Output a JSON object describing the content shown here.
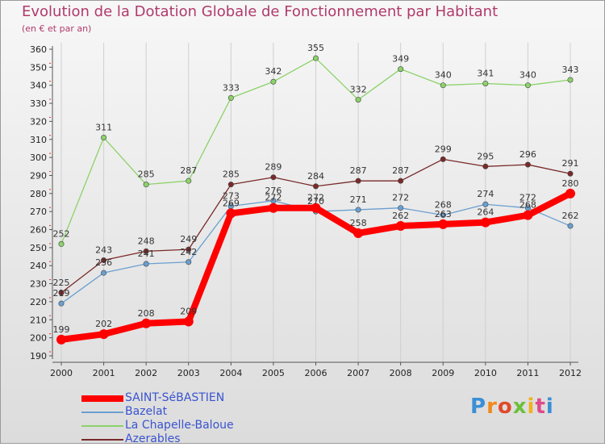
{
  "title": "Evolution de la Dotation Globale de Fonctionnement par Habitant",
  "subtitle": "(en € et par an)",
  "logo_text": "Proxiti",
  "chart_data": {
    "type": "line",
    "title": "Evolution de la Dotation Globale de Fonctionnement par Habitant",
    "subtitle": "(en € et par an)",
    "x": [
      2000,
      2001,
      2002,
      2003,
      2004,
      2005,
      2006,
      2007,
      2008,
      2009,
      2010,
      2011,
      2012
    ],
    "x_tick_labels": [
      "2000",
      "2001",
      "2002",
      "2003",
      "2004",
      "2005",
      "2006",
      "2007",
      "2008",
      "2009",
      "2010",
      "2011",
      "2012"
    ],
    "ylim": [
      190,
      360
    ],
    "y_ticks": [
      190,
      200,
      210,
      220,
      230,
      240,
      250,
      260,
      270,
      280,
      290,
      300,
      310,
      320,
      330,
      340,
      350,
      360
    ],
    "y_tick_labels": [
      "190",
      "200",
      "210",
      "220",
      "230",
      "240",
      "250",
      "260",
      "270",
      "280",
      "290",
      "300",
      "310",
      "320",
      "330",
      "340",
      "350",
      "360"
    ],
    "grid": "vertical",
    "legend_position": "bottom-left",
    "series": [
      {
        "name": "SAINT-SéBASTIEN",
        "color": "#ff0000",
        "style": "thick",
        "values": [
          199,
          202,
          208,
          209,
          269,
          272,
          272,
          258,
          262,
          263,
          264,
          268,
          280
        ],
        "labels": [
          "199",
          "202",
          "208",
          "209",
          "269",
          "272",
          "272",
          "258",
          "262",
          "263",
          "264",
          "268",
          "280"
        ]
      },
      {
        "name": "Bazelat",
        "color": "#6a9fd0",
        "style": "thin",
        "values": [
          219,
          236,
          241,
          242,
          273,
          276,
          270,
          271,
          272,
          268,
          274,
          272,
          262
        ],
        "labels": [
          "219",
          "236",
          "241",
          "242",
          "273",
          "276",
          "270",
          "271",
          "272",
          "268",
          "274",
          "272",
          "262"
        ]
      },
      {
        "name": "La Chapelle-Baloue",
        "color": "#8cd26a",
        "style": "thin",
        "values": [
          252,
          311,
          285,
          287,
          333,
          342,
          355,
          332,
          349,
          340,
          341,
          340,
          343
        ],
        "labels": [
          "252",
          "311",
          "285",
          "287",
          "333",
          "342",
          "355",
          "332",
          "349",
          "340",
          "341",
          "340",
          "343"
        ]
      },
      {
        "name": "Azerables",
        "color": "#7a2a2a",
        "style": "thin",
        "values": [
          225,
          243,
          248,
          249,
          285,
          289,
          284,
          287,
          287,
          299,
          295,
          296,
          291
        ],
        "labels": [
          "225",
          "243",
          "248",
          "249",
          "285",
          "289",
          "284",
          "287",
          "287",
          "299",
          "295",
          "296",
          "291"
        ]
      }
    ]
  }
}
